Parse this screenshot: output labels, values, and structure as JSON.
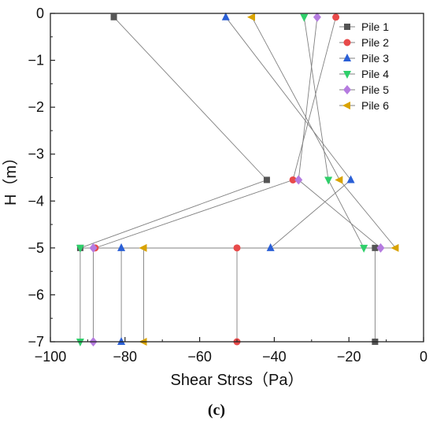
{
  "panel_label": "(c)",
  "chart_data": {
    "type": "line",
    "title": "",
    "xlabel": "Shear Strss（Pa）",
    "ylabel": "H（m）",
    "xlim": [
      -100,
      0
    ],
    "ylim": [
      -7,
      0
    ],
    "xticks": [
      "−100",
      "−80",
      "−60",
      "−40",
      "−20",
      "0"
    ],
    "xtick_values": [
      -100,
      -80,
      -60,
      -40,
      -20,
      0
    ],
    "yticks": [
      "0",
      "−1",
      "−2",
      "−3",
      "−4",
      "−5",
      "−6",
      "−7"
    ],
    "ytick_values": [
      0,
      -1,
      -2,
      -3,
      -4,
      -5,
      -6,
      -7
    ],
    "grid": false,
    "legend_position": "top-right",
    "series": [
      {
        "name": "Pile 1",
        "marker": "square",
        "color": "#555555",
        "points": [
          [
            -83,
            -0.08
          ],
          [
            -42,
            -3.55
          ],
          [
            -92,
            -5.0
          ],
          [
            -13,
            -5.0
          ],
          [
            -13,
            -7.0
          ]
        ]
      },
      {
        "name": "Pile 2",
        "marker": "circle",
        "color": "#e84a4a",
        "points": [
          [
            -23.5,
            -0.08
          ],
          [
            -35,
            -3.55
          ],
          [
            -88,
            -5.0
          ],
          [
            -50,
            -5.0
          ],
          [
            -50,
            -7.0
          ]
        ]
      },
      {
        "name": "Pile 3",
        "marker": "triangle-up",
        "color": "#2a5fd6",
        "points": [
          [
            -53,
            -0.08
          ],
          [
            -19.5,
            -3.55
          ],
          [
            -41,
            -5.0
          ],
          [
            -81,
            -5.0
          ],
          [
            -81,
            -7.0
          ]
        ]
      },
      {
        "name": "Pile 4",
        "marker": "triangle-down",
        "color": "#2fcf6a",
        "points": [
          [
            -32,
            -0.08
          ],
          [
            -25.5,
            -3.55
          ],
          [
            -16,
            -5.0
          ],
          [
            -92,
            -5.0
          ],
          [
            -92,
            -7.0
          ]
        ]
      },
      {
        "name": "Pile 5",
        "marker": "diamond",
        "color": "#b57be0",
        "points": [
          [
            -28.5,
            -0.08
          ],
          [
            -33.5,
            -3.55
          ],
          [
            -11.5,
            -5.0
          ],
          [
            -88.5,
            -5.0
          ],
          [
            -88.5,
            -7.0
          ]
        ]
      },
      {
        "name": "Pile 6",
        "marker": "triangle-left",
        "color": "#d9a300",
        "points": [
          [
            -46,
            -0.08
          ],
          [
            -22.5,
            -3.55
          ],
          [
            -7.5,
            -5.0
          ],
          [
            -75,
            -5.0
          ],
          [
            -75,
            -7.0
          ]
        ]
      }
    ]
  }
}
